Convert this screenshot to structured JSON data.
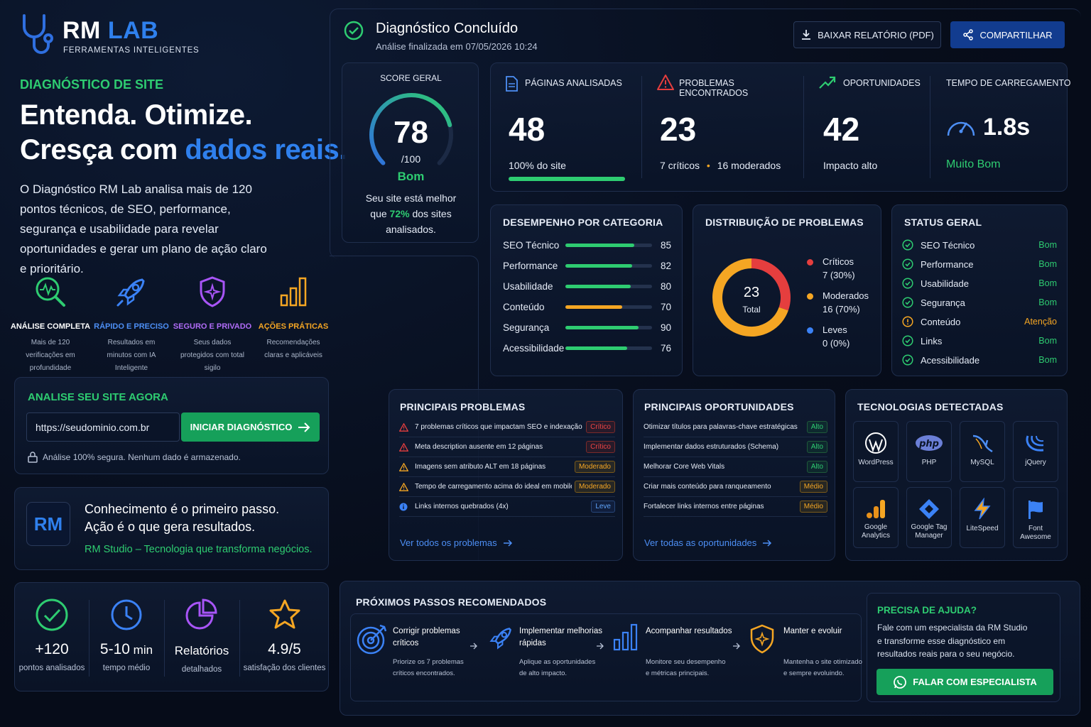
{
  "brand": {
    "name_rm": "RM",
    "name_lab": "LAB",
    "tagline": "FERRAMENTAS INTELIGENTES"
  },
  "hero": {
    "kicker": "DIAGNÓSTICO DE SITE",
    "headline_1": "Entenda. Otimize.",
    "headline_2a": "Cresça com ",
    "headline_2b": "dados reais.",
    "description": "O Diagnóstico RM Lab analisa mais de 120 pontos técnicos, de SEO, performance, segurança e usabilidade para revelar oportunidades e gerar um plano de ação claro e prioritário."
  },
  "features": [
    {
      "icon": "magnifier-pulse-icon",
      "title": "ANÁLISE COMPLETA",
      "desc": "Mais de 120 verificações em profundidade",
      "color": "#2ecc71"
    },
    {
      "icon": "rocket-icon",
      "title": "RÁPIDO E PRECISO",
      "desc": "Resultados em minutos com IA Inteligente",
      "color": "#3b82f6"
    },
    {
      "icon": "shield-icon",
      "title": "SEGURO E PRIVADO",
      "desc": "Seus dados protegidos com total sigilo",
      "color": "#a855f7"
    },
    {
      "icon": "bar-chart-icon",
      "title": "AÇÕES PRÁTICAS",
      "desc": "Recomendações claras e aplicáveis",
      "color": "#f5a623"
    }
  ],
  "analyze": {
    "title": "ANALISE SEU SITE AGORA",
    "input_value": "https://seudominio.com.br",
    "button": "INICIAR DIAGNÓSTICO",
    "note": "Análise 100% segura. Nenhum dado é armazenado."
  },
  "quote": {
    "logo": "RM",
    "line1": "Conhecimento é o primeiro passo.",
    "line2": "Ação é o que gera resultados.",
    "line3": "RM Studio – Tecnologia que transforma negócios."
  },
  "stats": [
    {
      "icon": "check-circle-icon",
      "value": "+120",
      "unit": "",
      "label": "pontos analisados",
      "color": "#2ecc71"
    },
    {
      "icon": "clock-icon",
      "value": "5-10",
      "unit": " min",
      "label": "tempo médio",
      "color": "#3b82f6"
    },
    {
      "icon": "pie-chart-icon",
      "value": "Relatórios",
      "unit": "",
      "label": "detalhados",
      "color": "#a855f7"
    },
    {
      "icon": "star-icon",
      "value": "4.9/5",
      "unit": "",
      "label": "satisfação dos clientes",
      "color": "#f5a623"
    }
  ],
  "header": {
    "title": "Diagnóstico Concluído",
    "subtitle": "Análise finalizada em 07/05/2026 10:24",
    "download": "BAIXAR RELATÓRIO (PDF)",
    "share": "COMPARTILHAR"
  },
  "score": {
    "label": "SCORE GERAL",
    "value": 78,
    "value_text": "78",
    "max": "/100",
    "rating": "Bom",
    "text_1": "Seu site está melhor",
    "text_2a": "que ",
    "text_2b": "72%",
    "text_2c": " dos sites",
    "text_3": "analisados."
  },
  "kpis": [
    {
      "icon": "document-icon",
      "label": "PÁGINAS ANALISADAS",
      "value": "48",
      "sub": "100% do site",
      "progress": 1.0
    },
    {
      "icon": "warning-icon",
      "label": "PROBLEMAS ENCONTRADOS",
      "value": "23",
      "sub_a": "7 críticos",
      "sub_b": "16 moderados"
    },
    {
      "icon": "trend-up-icon",
      "label": "OPORTUNIDADES",
      "value": "42",
      "sub": "Impacto alto"
    },
    {
      "icon": "speedometer-icon",
      "label": "TEMPO DE CARREGAMENTO",
      "value": "1.8s",
      "sub": "Muito Bom"
    }
  ],
  "category": {
    "title": "DESEMPENHO POR CATEGORIA",
    "items": [
      {
        "name": "SEO Técnico",
        "value": 85,
        "color": "#2ecc71"
      },
      {
        "name": "Performance",
        "value": 82,
        "color": "#2ecc71"
      },
      {
        "name": "Usabilidade",
        "value": 80,
        "color": "#2ecc71"
      },
      {
        "name": "Conteúdo",
        "value": 70,
        "color": "#f5a623"
      },
      {
        "name": "Segurança",
        "value": 90,
        "color": "#2ecc71"
      },
      {
        "name": "Acessibilidade",
        "value": 76,
        "color": "#2ecc71"
      }
    ]
  },
  "distribution": {
    "title": "DISTRIBUIÇÃO DE PROBLEMAS",
    "total": "23",
    "total_label": "Total",
    "items": [
      {
        "name": "Críticos",
        "detail": "7 (30%)",
        "value": 7,
        "color": "#e53e3e"
      },
      {
        "name": "Moderados",
        "detail": "16 (70%)",
        "value": 16,
        "color": "#f5a623"
      },
      {
        "name": "Leves",
        "detail": "0 (0%)",
        "value": 0,
        "color": "#3b82f6"
      }
    ]
  },
  "status": {
    "title": "STATUS GERAL",
    "items": [
      {
        "name": "SEO Técnico",
        "state": "Bom",
        "ok": true
      },
      {
        "name": "Performance",
        "state": "Bom",
        "ok": true
      },
      {
        "name": "Usabilidade",
        "state": "Bom",
        "ok": true
      },
      {
        "name": "Segurança",
        "state": "Bom",
        "ok": true
      },
      {
        "name": "Conteúdo",
        "state": "Atenção",
        "ok": false
      },
      {
        "name": "Links",
        "state": "Bom",
        "ok": true
      },
      {
        "name": "Acessibilidade",
        "state": "Bom",
        "ok": true
      }
    ]
  },
  "problems": {
    "title": "PRINCIPAIS PROBLEMAS",
    "items": [
      {
        "text": "7 problemas críticos que impactam SEO e indexação",
        "badge": "Crítico",
        "level": "crit"
      },
      {
        "text": "Meta description ausente em 12 páginas",
        "badge": "Crítico",
        "level": "crit"
      },
      {
        "text": "Imagens sem atributo ALT em 18 páginas",
        "badge": "Moderado",
        "level": "mod"
      },
      {
        "text": "Tempo de carregamento acima do ideal em mobile",
        "badge": "Moderado",
        "level": "mod"
      },
      {
        "text": "Links internos quebrados (4x)",
        "badge": "Leve",
        "level": "leve"
      }
    ],
    "link": "Ver todos os problemas"
  },
  "opportunities": {
    "title": "PRINCIPAIS OPORTUNIDADES",
    "items": [
      {
        "text": "Otimizar títulos para palavras-chave estratégicas",
        "badge": "Alto",
        "level": "alto"
      },
      {
        "text": "Implementar dados estruturados (Schema)",
        "badge": "Alto",
        "level": "alto"
      },
      {
        "text": "Melhorar Core Web Vitals",
        "badge": "Alto",
        "level": "alto"
      },
      {
        "text": "Criar mais conteúdo para ranqueamento",
        "badge": "Médio",
        "level": "med"
      },
      {
        "text": "Fortalecer links internos entre páginas",
        "badge": "Médio",
        "level": "med"
      }
    ],
    "link": "Ver todas as oportunidades"
  },
  "tech": {
    "title": "TECNOLOGIAS DETECTADAS",
    "items": [
      {
        "name": "WordPress",
        "icon": "wordpress-icon"
      },
      {
        "name": "PHP",
        "icon": "php-icon"
      },
      {
        "name": "MySQL",
        "icon": "mysql-icon"
      },
      {
        "name": "jQuery",
        "icon": "jquery-icon"
      },
      {
        "name": "Google Analytics",
        "icon": "google-analytics-icon"
      },
      {
        "name": "Google Tag Manager",
        "icon": "google-tag-manager-icon"
      },
      {
        "name": "LiteSpeed",
        "icon": "litespeed-icon"
      },
      {
        "name": "Font Awesome",
        "icon": "font-awesome-icon"
      }
    ]
  },
  "steps": {
    "title": "PRÓXIMOS PASSOS RECOMENDADOS",
    "items": [
      {
        "icon": "target-icon",
        "title": "Corrigir problemas críticos",
        "desc": "Priorize os 7 problemas críticos encontrados."
      },
      {
        "icon": "rocket-icon",
        "title": "Implementar melhorias rápidas",
        "desc": "Aplique as oportunidades de alto impacto."
      },
      {
        "icon": "bar-chart-icon",
        "title": "Acompanhar resultados",
        "desc": "Monitore seu desempenho e métricas principais."
      },
      {
        "icon": "shield-icon",
        "title": "Manter e evoluir",
        "desc": "Mantenha o site otimizado e sempre evoluindo."
      }
    ]
  },
  "help": {
    "title": "PRECISA DE AJUDA?",
    "text": "Fale com um especialista da RM Studio e transforme esse diagnóstico em resultados reais para o seu negócio.",
    "button": "FALAR COM ESPECIALISTA"
  }
}
